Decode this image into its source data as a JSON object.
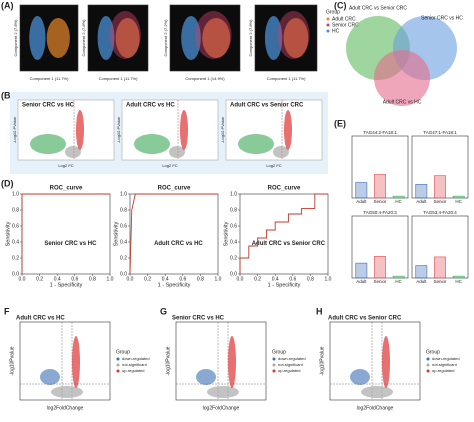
{
  "figure": {
    "A": {
      "label": "(A)",
      "x_labels": [
        "Component 1 (11.7%)",
        "Component 1 (11.7%)",
        "Component 1 (14.9%)",
        "Component 1 (11.7%)"
      ],
      "y_labels": [
        "Component 2 (7.8%)",
        "Component 2 (7.8%)",
        "Component 2 (7.2%)",
        "Component 2 (7.8%)"
      ],
      "legend_title": "Group",
      "legend": [
        "Adult CRC",
        "Senior CRC",
        "HC"
      ]
    },
    "B": {
      "label": "(B)",
      "titles": [
        "Senior CRC vs HC",
        "Adult CRC vs HC",
        "Adult CRC vs Senior CRC"
      ],
      "x_label": "Log2 FC",
      "y_label": "-Log10 PValue"
    },
    "C": {
      "label": "(C)",
      "sets": [
        "Adult CRC vs Senior CRC",
        "Senior CRC vs HC",
        "Adult CRC vs HC"
      ]
    },
    "D": {
      "label": "(D)"
    },
    "E": {
      "label": "(E)"
    },
    "F": {
      "label": "F",
      "title": "Adult CRC vs HC"
    },
    "G": {
      "label": "G",
      "title": "Senior CRC vs HC"
    },
    "H": {
      "label": "H",
      "title": "Adult CRC vs Senior CRC"
    },
    "volcano": {
      "x_label": "log2FoldChange",
      "y_label": "-log10Pvalue",
      "legend_title": "Group",
      "legend": [
        "down-regulated",
        "not-significant",
        "up-regulated"
      ]
    }
  },
  "chart_data": [
    {
      "type": "line",
      "title": "ROC_curve",
      "annotation": "Senior CRC vs HC",
      "x_label": "1 - Specificity",
      "y_label": "Sensitivity",
      "color": "#c0392b",
      "x": [
        0,
        0,
        1
      ],
      "values": [
        0,
        1,
        1
      ],
      "xlim": [
        0,
        1
      ],
      "ylim": [
        0,
        1
      ],
      "xticks": [
        {
          "value": 0,
          "label": "0.0"
        },
        {
          "value": 0.2,
          "label": "0.2"
        },
        {
          "value": 0.4,
          "label": "0.4"
        },
        {
          "value": 0.6,
          "label": "0.6"
        },
        {
          "value": 0.8,
          "label": "0.8"
        },
        {
          "value": 1,
          "label": "1.0"
        }
      ],
      "yticks": [
        {
          "value": 0,
          "label": "0.0"
        },
        {
          "value": 0.2,
          "label": "0.2"
        },
        {
          "value": 0.4,
          "label": "0.4"
        },
        {
          "value": 0.6,
          "label": "0.6"
        },
        {
          "value": 0.8,
          "label": "0.8"
        },
        {
          "value": 1,
          "label": "1.0"
        }
      ]
    },
    {
      "type": "line",
      "title": "ROC_curve",
      "annotation": "Adult CRC vs HC",
      "x_label": "1 - Specificity",
      "y_label": "Sensitivity",
      "color": "#c0392b",
      "x": [
        0,
        0.02,
        0.06,
        1
      ],
      "values": [
        0,
        0.8,
        1,
        1
      ],
      "xlim": [
        0,
        1
      ],
      "ylim": [
        0,
        1
      ],
      "xticks": [
        {
          "value": 0,
          "label": "0.0"
        },
        {
          "value": 0.2,
          "label": "0.2"
        },
        {
          "value": 0.4,
          "label": "0.4"
        },
        {
          "value": 0.6,
          "label": "0.6"
        },
        {
          "value": 0.8,
          "label": "0.8"
        },
        {
          "value": 1,
          "label": "1.0"
        }
      ],
      "yticks": [
        {
          "value": 0,
          "label": "0.0"
        },
        {
          "value": 0.2,
          "label": "0.2"
        },
        {
          "value": 0.4,
          "label": "0.4"
        },
        {
          "value": 0.6,
          "label": "0.6"
        },
        {
          "value": 0.8,
          "label": "0.8"
        },
        {
          "value": 1,
          "label": "1.0"
        }
      ]
    },
    {
      "type": "line",
      "title": "ROC_curve",
      "annotation": "Adult CRC vs Senior CRC",
      "x_label": "1 - Specificity",
      "y_label": "Sensitivity",
      "color": "#c0392b",
      "x": [
        0,
        0,
        0.1,
        0.1,
        0.2,
        0.2,
        0.3,
        0.3,
        0.4,
        0.4,
        0.55,
        0.55,
        0.7,
        0.7,
        0.85,
        0.85,
        1
      ],
      "values": [
        0,
        0.2,
        0.2,
        0.35,
        0.35,
        0.45,
        0.45,
        0.55,
        0.55,
        0.65,
        0.65,
        0.75,
        0.75,
        0.82,
        0.82,
        1,
        1
      ],
      "xlim": [
        0,
        1
      ],
      "ylim": [
        0,
        1
      ],
      "xticks": [
        {
          "value": 0,
          "label": "0.0"
        },
        {
          "value": 0.2,
          "label": "0.2"
        },
        {
          "value": 0.4,
          "label": "0.4"
        },
        {
          "value": 0.6,
          "label": "0.6"
        },
        {
          "value": 0.8,
          "label": "0.8"
        },
        {
          "value": 1,
          "label": "1.0"
        }
      ],
      "yticks": [
        {
          "value": 0,
          "label": "0.0"
        },
        {
          "value": 0.2,
          "label": "0.2"
        },
        {
          "value": 0.4,
          "label": "0.4"
        },
        {
          "value": 0.6,
          "label": "0.6"
        },
        {
          "value": 0.8,
          "label": "0.8"
        },
        {
          "value": 1,
          "label": "1.0"
        }
      ]
    },
    {
      "type": "bar",
      "title": "TAG44:2-FA18:1",
      "categories": [
        "Adult",
        "Senior",
        "HC"
      ],
      "values": [
        2.5,
        3.8,
        0.3
      ],
      "colors": [
        "#3b6fb6",
        "#e05050",
        "#3aa655"
      ],
      "ylim": [
        0,
        10
      ]
    },
    {
      "type": "bar",
      "title": "TAG47:1-FA18:1",
      "categories": [
        "Adult",
        "Senior",
        "HC"
      ],
      "values": [
        2.2,
        3.6,
        0.3
      ],
      "colors": [
        "#3b6fb6",
        "#e05050",
        "#3aa655"
      ],
      "ylim": [
        0,
        10
      ]
    },
    {
      "type": "bar",
      "title": "TAG50:4-FA20:3",
      "categories": [
        "Adult",
        "Senior",
        "HC"
      ],
      "values": [
        2.4,
        3.5,
        0.3
      ],
      "colors": [
        "#3b6fb6",
        "#e05050",
        "#3aa655"
      ],
      "ylim": [
        0,
        10
      ]
    },
    {
      "type": "bar",
      "title": "TAG53:4-FA20:4",
      "categories": [
        "Adult",
        "Senior",
        "HC"
      ],
      "values": [
        2.0,
        3.4,
        0.3
      ],
      "colors": [
        "#3b6fb6",
        "#e05050",
        "#3aa655"
      ],
      "ylim": [
        0,
        10
      ]
    }
  ]
}
